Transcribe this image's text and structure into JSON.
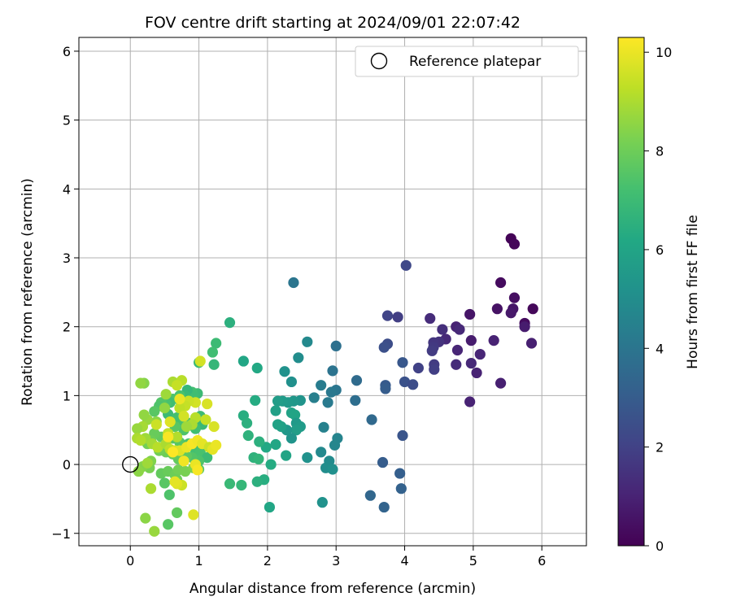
{
  "chart_data": {
    "type": "scatter",
    "title": "FOV centre drift starting at 2024/09/01 22:07:42",
    "xlabel": "Angular distance from reference (arcmin)",
    "ylabel": "Rotation from reference (arcmin)",
    "xlim": [
      -0.75,
      6.65
    ],
    "ylim": [
      -1.18,
      6.2
    ],
    "xticks": [
      0,
      1,
      2,
      3,
      4,
      5,
      6
    ],
    "yticks": [
      -1,
      0,
      1,
      2,
      3,
      4,
      5,
      6
    ],
    "grid": true,
    "legend": {
      "placement": "top-right",
      "entries": [
        "Reference platepar"
      ]
    },
    "reference_point": {
      "x": 0,
      "y": 0
    },
    "colorbar": {
      "label": "Hours from first FF file",
      "min": 0,
      "max": 10.3,
      "ticks": [
        0,
        2,
        4,
        6,
        8,
        10
      ],
      "colormap": "viridis"
    },
    "points": [
      [
        5.55,
        3.28,
        0.1
      ],
      [
        5.6,
        3.2,
        0.15
      ],
      [
        5.4,
        2.64,
        0.3
      ],
      [
        5.6,
        2.42,
        0.4
      ],
      [
        5.87,
        2.26,
        0.2
      ],
      [
        5.35,
        2.26,
        0.5
      ],
      [
        5.58,
        2.26,
        0.6
      ],
      [
        5.55,
        2.2,
        0.7
      ],
      [
        5.75,
        2.05,
        0.3
      ],
      [
        5.75,
        2.0,
        0.8
      ],
      [
        5.85,
        1.76,
        0.9
      ],
      [
        5.3,
        1.8,
        1.0
      ],
      [
        5.1,
        1.6,
        1.1
      ],
      [
        5.05,
        1.33,
        1.0
      ],
      [
        5.4,
        1.18,
        0.9
      ],
      [
        4.97,
        1.8,
        0.8
      ],
      [
        4.97,
        1.47,
        1.2
      ],
      [
        4.95,
        2.18,
        0.6
      ],
      [
        4.75,
        2.0,
        1.0
      ],
      [
        4.8,
        1.96,
        1.2
      ],
      [
        4.77,
        1.66,
        1.1
      ],
      [
        4.75,
        1.45,
        1.3
      ],
      [
        4.55,
        1.96,
        1.4
      ],
      [
        4.6,
        1.82,
        1.2
      ],
      [
        4.5,
        1.78,
        1.5
      ],
      [
        4.42,
        1.77,
        1.6
      ],
      [
        4.42,
        1.7,
        1.7
      ],
      [
        4.4,
        1.65,
        1.8
      ],
      [
        4.43,
        1.45,
        1.8
      ],
      [
        4.43,
        1.38,
        1.9
      ],
      [
        4.37,
        2.12,
        1.3
      ],
      [
        4.95,
        0.91,
        1.0
      ],
      [
        4.2,
        1.4,
        2.0
      ],
      [
        4.02,
        2.89,
        2.2
      ],
      [
        3.75,
        2.16,
        2.1
      ],
      [
        3.9,
        2.14,
        1.9
      ],
      [
        3.75,
        1.75,
        2.4
      ],
      [
        3.7,
        1.7,
        2.5
      ],
      [
        3.97,
        1.48,
        2.8
      ],
      [
        4.0,
        1.2,
        2.6
      ],
      [
        4.12,
        1.16,
        2.4
      ],
      [
        3.72,
        1.15,
        2.9
      ],
      [
        3.72,
        1.1,
        3.0
      ],
      [
        3.97,
        0.42,
        2.7
      ],
      [
        3.68,
        0.03,
        3.0
      ],
      [
        3.93,
        -0.13,
        3.1
      ],
      [
        3.95,
        -0.35,
        3.2
      ],
      [
        3.7,
        -0.62,
        3.3
      ],
      [
        3.5,
        -0.45,
        3.4
      ],
      [
        3.52,
        0.65,
        3.5
      ],
      [
        3.3,
        1.22,
        3.6
      ],
      [
        3.28,
        0.93,
        3.7
      ],
      [
        3.0,
        1.72,
        3.8
      ],
      [
        2.95,
        1.36,
        3.9
      ],
      [
        3.0,
        1.08,
        4.0
      ],
      [
        2.93,
        1.05,
        4.1
      ],
      [
        2.88,
        0.9,
        4.2
      ],
      [
        2.78,
        1.15,
        4.3
      ],
      [
        2.68,
        0.97,
        4.4
      ],
      [
        2.82,
        0.54,
        4.5
      ],
      [
        3.02,
        0.38,
        4.6
      ],
      [
        2.98,
        0.28,
        4.7
      ],
      [
        2.78,
        0.18,
        4.8
      ],
      [
        2.9,
        0.05,
        4.9
      ],
      [
        2.85,
        -0.05,
        5.0
      ],
      [
        2.95,
        -0.07,
        5.1
      ],
      [
        2.8,
        -0.55,
        5.2
      ],
      [
        2.38,
        2.64,
        4.0
      ],
      [
        2.58,
        1.78,
        4.8
      ],
      [
        2.45,
        1.55,
        5.0
      ],
      [
        2.35,
        1.2,
        5.1
      ],
      [
        2.25,
        1.35,
        5.2
      ],
      [
        2.48,
        0.93,
        5.3
      ],
      [
        2.38,
        0.92,
        5.4
      ],
      [
        2.3,
        0.9,
        5.5
      ],
      [
        2.22,
        0.92,
        5.6
      ],
      [
        2.15,
        0.92,
        5.7
      ],
      [
        2.12,
        0.78,
        5.8
      ],
      [
        2.35,
        0.75,
        5.9
      ],
      [
        2.4,
        0.72,
        6.0
      ],
      [
        2.42,
        0.6,
        5.5
      ],
      [
        2.48,
        0.55,
        5.6
      ],
      [
        2.42,
        0.5,
        5.7
      ],
      [
        2.35,
        0.38,
        5.3
      ],
      [
        2.28,
        0.5,
        5.4
      ],
      [
        2.2,
        0.55,
        5.8
      ],
      [
        2.15,
        0.58,
        5.9
      ],
      [
        2.27,
        0.13,
        6.0
      ],
      [
        2.58,
        0.1,
        5.2
      ],
      [
        2.12,
        0.29,
        6.1
      ],
      [
        1.98,
        0.25,
        6.2
      ],
      [
        2.05,
        0.0,
        6.3
      ],
      [
        1.95,
        -0.22,
        6.4
      ],
      [
        1.85,
        -0.25,
        6.5
      ],
      [
        2.03,
        -0.62,
        6.1
      ],
      [
        1.85,
        1.4,
        6.2
      ],
      [
        1.82,
        0.93,
        6.3
      ],
      [
        1.65,
        1.5,
        6.1
      ],
      [
        1.65,
        0.71,
        6.4
      ],
      [
        1.7,
        0.6,
        6.5
      ],
      [
        1.72,
        0.42,
        6.6
      ],
      [
        1.88,
        0.33,
        6.5
      ],
      [
        1.8,
        0.1,
        6.6
      ],
      [
        1.87,
        0.08,
        6.7
      ],
      [
        1.62,
        -0.3,
        6.8
      ],
      [
        1.45,
        -0.28,
        6.9
      ],
      [
        1.45,
        2.06,
        6.5
      ],
      [
        1.25,
        1.76,
        7.0
      ],
      [
        1.2,
        1.63,
        7.1
      ],
      [
        1.22,
        1.45,
        6.8
      ],
      [
        1.0,
        1.48,
        6.9
      ],
      [
        0.98,
        1.03,
        7.0
      ],
      [
        0.9,
        1.05,
        7.2
      ],
      [
        0.92,
        1.0,
        7.1
      ],
      [
        0.83,
        1.08,
        6.8
      ],
      [
        0.8,
        1.0,
        6.9
      ],
      [
        0.72,
        1.0,
        7.3
      ],
      [
        0.7,
        0.95,
        7.2
      ],
      [
        0.62,
        0.95,
        7.4
      ],
      [
        0.58,
        0.9,
        7.1
      ],
      [
        0.52,
        0.88,
        7.3
      ],
      [
        0.45,
        0.9,
        7.5
      ],
      [
        0.42,
        0.85,
        7.4
      ],
      [
        0.35,
        0.77,
        7.6
      ],
      [
        0.55,
        0.73,
        7.0
      ],
      [
        0.68,
        0.68,
        7.2
      ],
      [
        0.78,
        0.62,
        7.3
      ],
      [
        0.85,
        0.6,
        7.5
      ],
      [
        1.02,
        0.7,
        7.0
      ],
      [
        1.05,
        0.58,
        6.9
      ],
      [
        0.95,
        0.52,
        7.1
      ],
      [
        0.78,
        0.5,
        7.4
      ],
      [
        0.65,
        0.55,
        7.6
      ],
      [
        0.55,
        0.45,
        7.7
      ],
      [
        0.45,
        0.4,
        7.8
      ],
      [
        0.35,
        0.45,
        7.9
      ],
      [
        0.3,
        0.35,
        8.0
      ],
      [
        0.25,
        0.3,
        8.1
      ],
      [
        0.62,
        0.38,
        7.5
      ],
      [
        0.72,
        0.32,
        7.6
      ],
      [
        0.85,
        0.3,
        7.3
      ],
      [
        0.95,
        0.2,
        7.2
      ],
      [
        1.02,
        0.18,
        7.3
      ],
      [
        1.12,
        0.1,
        7.0
      ],
      [
        1.0,
        0.05,
        7.4
      ],
      [
        0.9,
        0.1,
        7.5
      ],
      [
        0.82,
        0.12,
        7.7
      ],
      [
        0.7,
        0.08,
        7.8
      ],
      [
        0.62,
        0.15,
        7.9
      ],
      [
        0.52,
        0.18,
        8.0
      ],
      [
        0.42,
        0.2,
        8.1
      ],
      [
        0.3,
        0.05,
        8.3
      ],
      [
        0.28,
        -0.05,
        8.2
      ],
      [
        0.18,
        -0.03,
        8.4
      ],
      [
        0.12,
        -0.1,
        8.5
      ],
      [
        0.45,
        -0.13,
        7.8
      ],
      [
        0.55,
        -0.1,
        7.9
      ],
      [
        0.65,
        -0.15,
        8.0
      ],
      [
        0.7,
        -0.08,
        8.1
      ],
      [
        0.8,
        -0.1,
        8.2
      ],
      [
        0.92,
        -0.05,
        8.3
      ],
      [
        1.0,
        -0.07,
        7.6
      ],
      [
        0.5,
        -0.27,
        7.6
      ],
      [
        0.57,
        -0.44,
        7.4
      ],
      [
        0.68,
        -0.22,
        8.0
      ],
      [
        0.75,
        -0.3,
        9.5
      ],
      [
        0.68,
        -0.28,
        9.8
      ],
      [
        0.3,
        -0.35,
        9.0
      ],
      [
        0.68,
        -0.7,
        7.8
      ],
      [
        0.55,
        -0.87,
        7.6
      ],
      [
        0.22,
        -0.78,
        8.5
      ],
      [
        0.35,
        -0.97,
        8.7
      ],
      [
        0.92,
        -0.73,
        9.8
      ],
      [
        0.2,
        1.18,
        8.4
      ],
      [
        0.15,
        1.18,
        8.6
      ],
      [
        0.62,
        1.2,
        9.0
      ],
      [
        0.75,
        1.22,
        9.2
      ],
      [
        0.68,
        1.15,
        9.4
      ],
      [
        1.02,
        1.5,
        9.6
      ],
      [
        1.12,
        0.88,
        9.7
      ],
      [
        0.95,
        0.9,
        9.6
      ],
      [
        0.85,
        0.92,
        9.5
      ],
      [
        0.8,
        0.85,
        9.4
      ],
      [
        0.72,
        0.82,
        9.3
      ],
      [
        0.52,
        1.02,
        8.8
      ],
      [
        0.5,
        0.82,
        8.6
      ],
      [
        0.38,
        0.62,
        8.5
      ],
      [
        0.25,
        0.65,
        8.7
      ],
      [
        0.2,
        0.72,
        8.6
      ],
      [
        0.18,
        0.55,
        8.9
      ],
      [
        0.22,
        0.38,
        8.8
      ],
      [
        0.1,
        0.52,
        8.7
      ],
      [
        0.1,
        0.38,
        9.0
      ],
      [
        0.15,
        0.35,
        9.1
      ],
      [
        0.32,
        0.3,
        8.9
      ],
      [
        0.4,
        0.25,
        9.2
      ],
      [
        0.52,
        0.3,
        9.0
      ],
      [
        0.58,
        0.22,
        9.3
      ],
      [
        0.65,
        0.2,
        9.6
      ],
      [
        0.72,
        0.2,
        9.8
      ],
      [
        0.82,
        0.25,
        10.0
      ],
      [
        0.9,
        0.3,
        10.2
      ],
      [
        0.98,
        0.35,
        10.1
      ],
      [
        1.05,
        0.3,
        9.9
      ],
      [
        1.15,
        0.25,
        9.5
      ],
      [
        1.2,
        0.22,
        9.9
      ],
      [
        1.25,
        0.28,
        10.0
      ],
      [
        1.22,
        0.55,
        9.7
      ],
      [
        1.1,
        0.65,
        9.4
      ],
      [
        0.95,
        0.68,
        9.2
      ],
      [
        0.9,
        0.58,
        9.0
      ],
      [
        0.82,
        0.55,
        8.8
      ],
      [
        0.68,
        0.4,
        9.1
      ],
      [
        0.55,
        0.45,
        9.4
      ],
      [
        0.58,
        0.62,
        9.8
      ],
      [
        0.78,
        0.7,
        9.6
      ],
      [
        0.72,
        0.95,
        10.0
      ],
      [
        0.55,
        0.4,
        10.2
      ],
      [
        0.62,
        0.18,
        10.3
      ],
      [
        0.78,
        0.05,
        10.1
      ],
      [
        0.95,
        0.0,
        10.0
      ],
      [
        0.98,
        -0.08,
        10.2
      ],
      [
        0.65,
        -0.25,
        9.9
      ],
      [
        0.25,
        0.02,
        8.8
      ],
      [
        0.38,
        0.58,
        9.5
      ]
    ]
  }
}
